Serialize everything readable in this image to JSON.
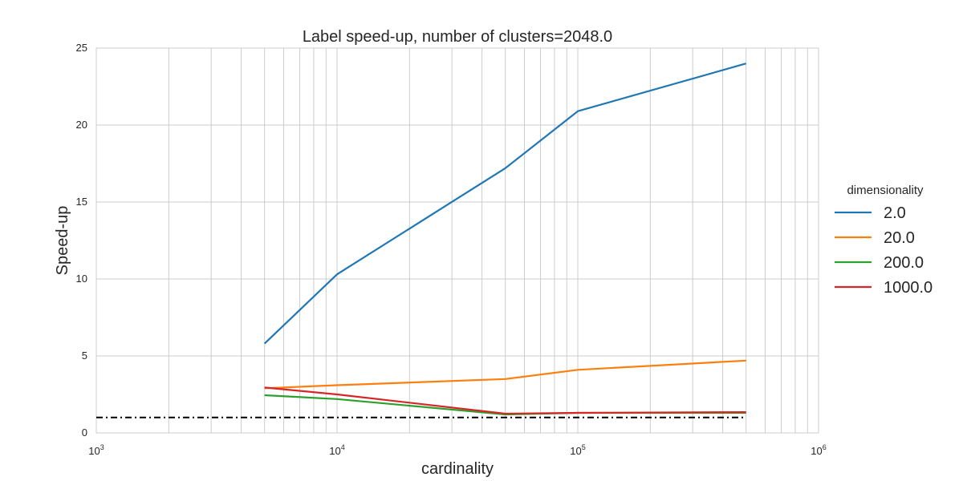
{
  "chart_data": {
    "type": "line",
    "title": "Label speed-up, number of clusters=2048.0",
    "xlabel": "cardinality",
    "ylabel": "Speed-up",
    "xscale": "log",
    "xlim": [
      1000,
      1000000
    ],
    "ylim": [
      0,
      25
    ],
    "grid": true,
    "legend_title": "dimensionality",
    "legend_position": "outside-right",
    "x_ticks": [
      {
        "value": 1000,
        "base": "10",
        "exp": "3"
      },
      {
        "value": 10000,
        "base": "10",
        "exp": "4"
      },
      {
        "value": 100000,
        "base": "10",
        "exp": "5"
      },
      {
        "value": 1000000,
        "base": "10",
        "exp": "6"
      }
    ],
    "y_ticks": [
      {
        "value": 0,
        "label": "0"
      },
      {
        "value": 5,
        "label": "5"
      },
      {
        "value": 10,
        "label": "10"
      },
      {
        "value": 15,
        "label": "15"
      },
      {
        "value": 20,
        "label": "20"
      },
      {
        "value": 25,
        "label": "25"
      }
    ],
    "x": [
      5000,
      10000,
      50000,
      100000,
      500000
    ],
    "series": [
      {
        "name": "2.0",
        "color": "#1f77b4",
        "values": [
          5.8,
          10.3,
          17.2,
          20.9,
          24.0
        ]
      },
      {
        "name": "20.0",
        "color": "#ff7f0e",
        "values": [
          2.9,
          3.1,
          3.5,
          4.1,
          4.7
        ]
      },
      {
        "name": "200.0",
        "color": "#2ca02c",
        "values": [
          2.45,
          2.2,
          1.2,
          1.3,
          1.3
        ]
      },
      {
        "name": "1000.0",
        "color": "#d62728",
        "values": [
          2.95,
          2.5,
          1.25,
          1.3,
          1.35
        ]
      }
    ],
    "reference_line": {
      "y": 1.0,
      "x_range": [
        1000,
        500000
      ],
      "color": "#000000",
      "style": "dashdot"
    }
  }
}
